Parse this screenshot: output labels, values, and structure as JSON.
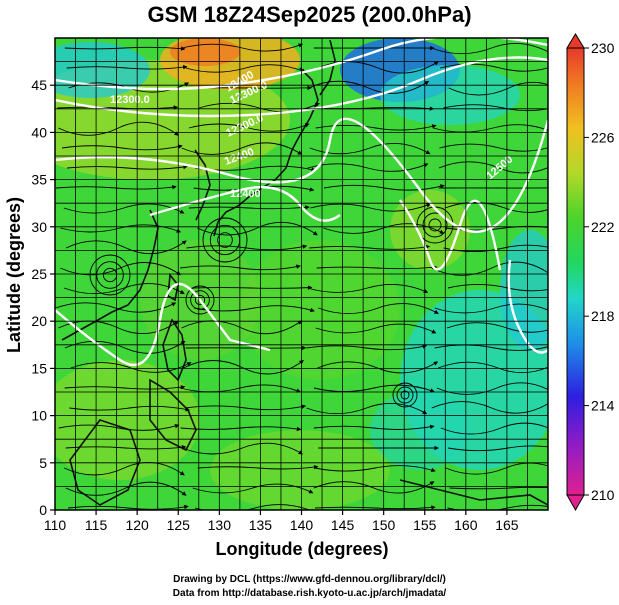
{
  "title": "GSM 18Z24Sep2025 (200.0hPa)",
  "x_axis": {
    "label": "Longitude (degrees)",
    "ticks": [
      110,
      115,
      120,
      125,
      130,
      135,
      140,
      145,
      150,
      155,
      160,
      165
    ],
    "range": [
      110,
      170
    ]
  },
  "y_axis": {
    "label": "Latitude  (degrees)",
    "ticks": [
      0,
      5,
      10,
      15,
      20,
      25,
      30,
      35,
      40,
      45
    ],
    "range": [
      0,
      50
    ]
  },
  "colorbar": {
    "ticks": [
      210,
      214,
      218,
      222,
      226,
      230
    ],
    "range": [
      210,
      230
    ],
    "colors": [
      "#e0208f",
      "#3b1dd6",
      "#1e9ce8",
      "#21d6b6",
      "#2fd43b",
      "#a5d82a",
      "#f0b020",
      "#e6462a"
    ]
  },
  "contours": [
    {
      "label": "12300.0"
    },
    {
      "label": "12300.0"
    },
    {
      "label": "12400"
    },
    {
      "label": "12400"
    },
    {
      "label": "12300.0"
    },
    {
      "label": "12400"
    },
    {
      "label": "12500"
    }
  ],
  "credits": [
    "Drawing by DCL (https://www.gfd-dennou.org/library/dcl/)",
    "Data from http://database.rish.kyoto-u.ac.jp/arch/jmadata/"
  ],
  "chart_data": {
    "type": "heatmap",
    "variable": "200.0hPa",
    "xlabel": "Longitude (degrees)",
    "ylabel": "Latitude  (degrees)",
    "xlim": [
      110,
      170
    ],
    "ylim": [
      0,
      50
    ],
    "color_range": [
      210,
      230
    ],
    "grid": true
  }
}
